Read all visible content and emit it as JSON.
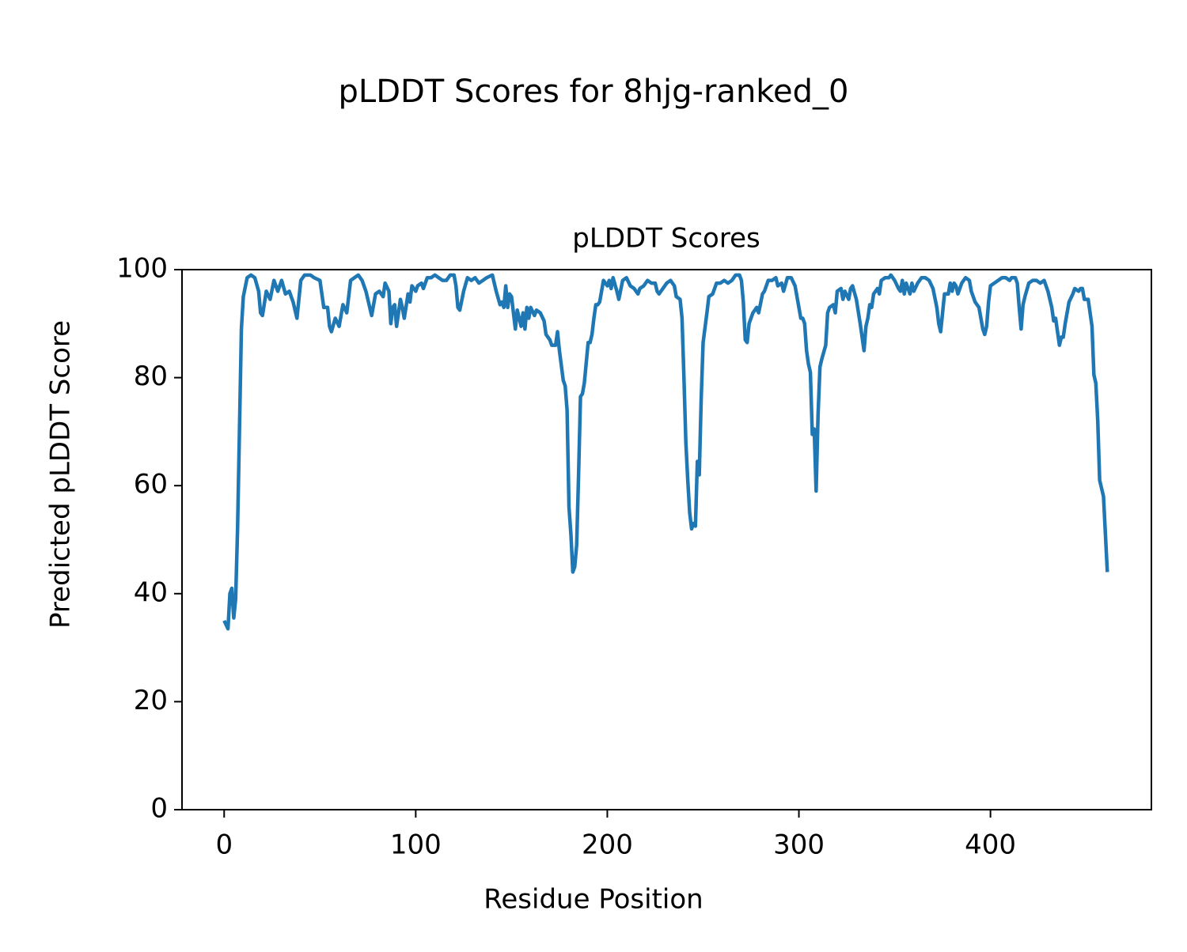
{
  "chart_data": {
    "type": "line",
    "suptitle": "pLDDT Scores for 8hjg-ranked_0",
    "title": "pLDDT Scores",
    "xlabel": "Residue Position",
    "ylabel": "Predicted pLDDT Score",
    "xlim": [
      -22,
      484
    ],
    "ylim": [
      0,
      100
    ],
    "xticks": [
      0,
      100,
      200,
      300,
      400
    ],
    "yticks": [
      0,
      20,
      40,
      60,
      80,
      100
    ],
    "grid": false,
    "series": [
      {
        "color": "#1f77b4",
        "x": [
          0,
          2,
          3,
          4,
          5,
          6,
          7,
          9,
          10,
          12,
          14,
          16,
          18,
          19,
          20,
          22,
          24,
          26,
          28,
          30,
          32,
          34,
          36,
          38,
          40,
          42,
          45,
          47,
          50,
          52,
          54,
          55,
          56,
          58,
          60,
          62,
          64,
          66,
          68,
          70,
          72,
          74,
          76,
          77,
          79,
          81,
          83,
          84,
          86,
          87,
          88,
          89,
          90,
          92,
          93,
          94,
          96,
          97,
          98,
          100,
          101,
          103,
          104,
          106,
          108,
          110,
          112,
          114,
          116,
          118,
          120,
          121,
          122,
          123,
          125,
          127,
          129,
          131,
          133,
          135,
          137,
          140,
          142,
          144,
          145,
          146,
          147,
          148,
          149,
          150,
          151,
          152,
          153,
          154,
          155,
          156,
          157,
          158,
          159,
          160,
          162,
          163,
          165,
          167,
          168,
          170,
          171,
          173,
          174,
          175,
          177,
          178,
          179,
          180,
          181,
          182,
          183,
          184,
          185,
          186,
          187,
          188,
          190,
          191,
          192,
          193,
          194,
          195,
          196,
          198,
          200,
          201,
          202,
          203,
          205,
          206,
          208,
          210,
          212,
          214,
          216,
          217,
          219,
          221,
          223,
          225,
          226,
          227,
          229,
          231,
          233,
          235,
          236,
          238,
          239,
          240,
          241,
          242,
          243,
          244,
          245,
          246,
          247,
          248,
          249,
          250,
          252,
          253,
          255,
          257,
          259,
          261,
          263,
          265,
          267,
          269,
          270,
          271,
          272,
          273,
          274,
          276,
          278,
          279,
          281,
          282,
          284,
          286,
          288,
          289,
          291,
          292,
          294,
          296,
          298,
          300,
          301,
          302,
          303,
          304,
          305,
          306,
          307,
          308,
          309,
          310,
          311,
          312,
          314,
          315,
          316,
          318,
          319,
          320,
          322,
          323,
          324,
          326,
          327,
          328,
          330,
          332,
          334,
          335,
          336,
          337,
          338,
          339,
          341,
          342,
          343,
          345,
          347,
          348,
          350,
          352,
          353,
          354,
          355,
          356,
          357,
          358,
          359,
          360,
          362,
          364,
          366,
          368,
          370,
          372,
          373,
          374,
          375,
          376,
          378,
          379,
          380,
          381,
          382,
          383,
          385,
          387,
          389,
          390,
          392,
          394,
          396,
          397,
          398,
          399,
          400,
          402,
          404,
          406,
          408,
          410,
          411,
          413,
          414,
          415,
          416,
          417,
          418,
          420,
          422,
          424,
          426,
          428,
          430,
          432,
          433,
          434,
          436,
          437,
          438,
          439,
          441,
          443,
          444,
          446,
          447,
          448,
          449,
          451,
          452,
          453,
          454,
          455,
          456,
          457,
          458,
          459,
          461
        ],
        "values": [
          35,
          33.5,
          40,
          41,
          35.5,
          39,
          52,
          89,
          95,
          98.5,
          99,
          98.5,
          96,
          92,
          91.5,
          96,
          94.5,
          98,
          96,
          98,
          95.5,
          96,
          94,
          91,
          98,
          99,
          99,
          98.5,
          98,
          93,
          93,
          89.5,
          88.5,
          91,
          89.5,
          93.5,
          92,
          98,
          98.5,
          99,
          98,
          96,
          93,
          91.5,
          95.5,
          96,
          95,
          97.5,
          96,
          90,
          93,
          93.5,
          89.5,
          94.5,
          93,
          91,
          95.5,
          94,
          97,
          96,
          97,
          97.5,
          96.5,
          98.5,
          98.5,
          99,
          98.5,
          98,
          98,
          99,
          99,
          97,
          93,
          92.5,
          96,
          98.5,
          98,
          98.5,
          97.5,
          98,
          98.5,
          99,
          96,
          93.5,
          94,
          93,
          97,
          93,
          95.5,
          95,
          92,
          89,
          92.5,
          91,
          89.5,
          92,
          89,
          93,
          91,
          93,
          91.5,
          92.5,
          92,
          90.5,
          88,
          87,
          86,
          86,
          88.5,
          85,
          79.5,
          78.5,
          74,
          56,
          51,
          44,
          45,
          49,
          62,
          76.5,
          77,
          79,
          86.5,
          86.5,
          88,
          91,
          93.5,
          93.5,
          94,
          98,
          97,
          98,
          96.5,
          98.5,
          96,
          94.5,
          98,
          98.5,
          97,
          96.5,
          95.5,
          96.5,
          97,
          98,
          97.5,
          97.5,
          96,
          95.5,
          96.5,
          97.5,
          98,
          97,
          95,
          94.5,
          91,
          80,
          68,
          61,
          55,
          52,
          53,
          52.5,
          64.5,
          62,
          76,
          86.5,
          92,
          95,
          95.5,
          97.5,
          97.5,
          98,
          97.5,
          98,
          99,
          99,
          98,
          94,
          87,
          86.5,
          90,
          92,
          93,
          92,
          95.5,
          96,
          98,
          98,
          98.5,
          97,
          97.5,
          96,
          98.5,
          98.5,
          97,
          93,
          91,
          91,
          90,
          85,
          82.5,
          81,
          69.5,
          70.5,
          59,
          73,
          82,
          83.5,
          86,
          92,
          93,
          93.5,
          92,
          96,
          96.5,
          94.5,
          96,
          94.5,
          96.5,
          97,
          94.5,
          90,
          85,
          89.5,
          91,
          93.5,
          93,
          95.5,
          96.5,
          95.5,
          98,
          98.5,
          98.5,
          99,
          98,
          96.5,
          96,
          98,
          95.5,
          97.5,
          96.5,
          95.5,
          97.5,
          96,
          97.5,
          98.5,
          98.5,
          98,
          96.5,
          93,
          90,
          88.5,
          92,
          95.5,
          95.5,
          97.5,
          96,
          97.5,
          97,
          95.5,
          97.5,
          98.5,
          98,
          96,
          94,
          93,
          89,
          88,
          89.5,
          94,
          97,
          97.5,
          98,
          98.5,
          98.5,
          98,
          98.5,
          98.5,
          97.5,
          93,
          89,
          93.5,
          95,
          97.5,
          98,
          98,
          97.5,
          98,
          96,
          93,
          90.5,
          91,
          86,
          87.5,
          87.5,
          90,
          94,
          95.5,
          96.5,
          96,
          96.5,
          96.5,
          94.5,
          94.5,
          92,
          89.5,
          80.5,
          79,
          72,
          61,
          59.5,
          58,
          44
        ]
      }
    ]
  }
}
